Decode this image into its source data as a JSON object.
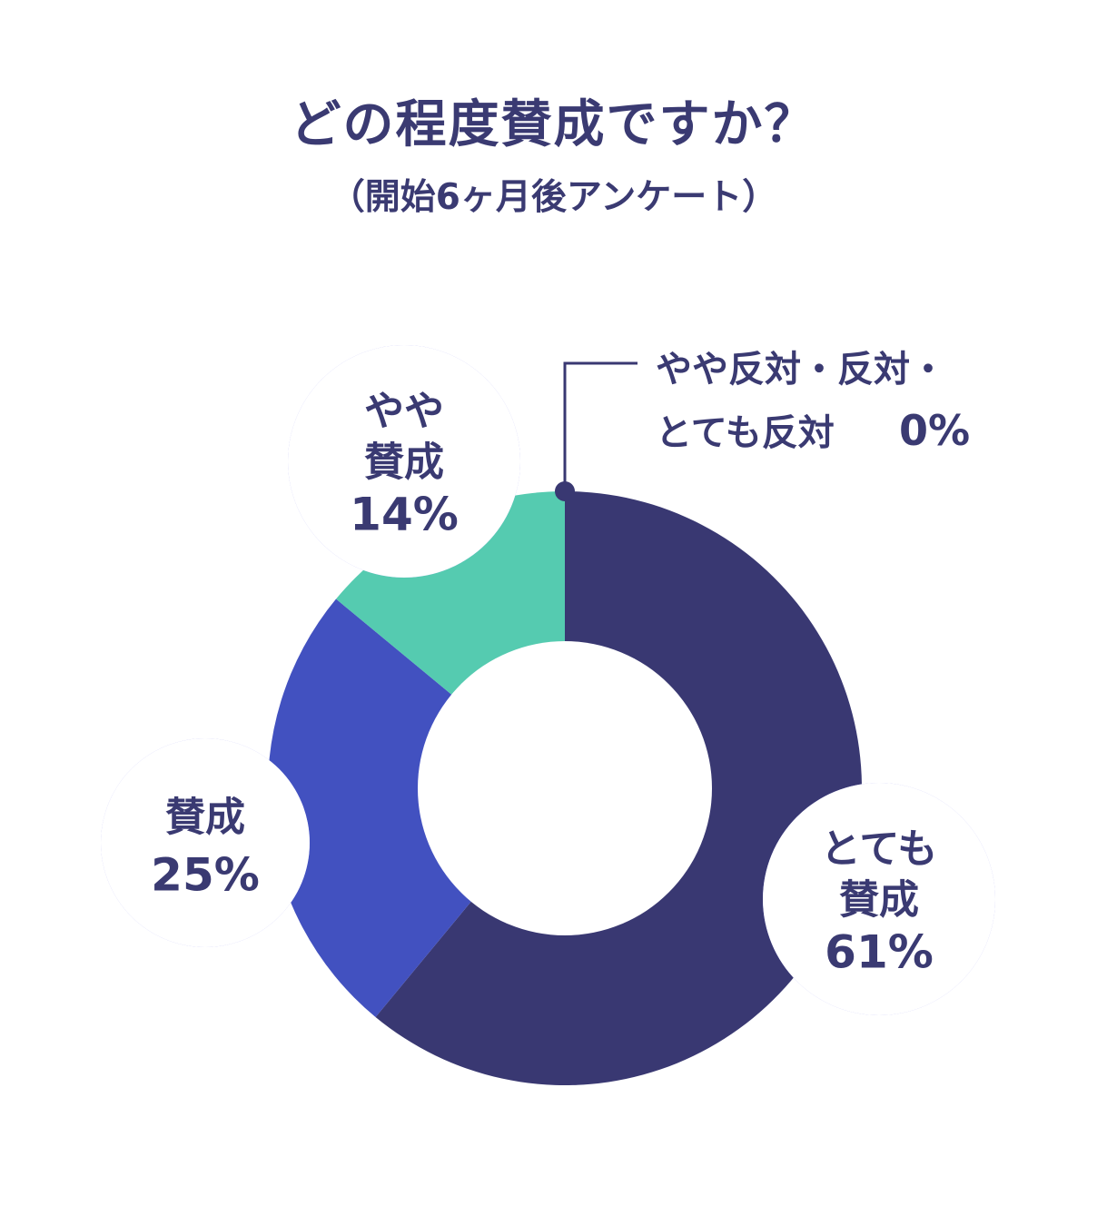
{
  "title": "どの程度賛成ですか？",
  "subtitle": "（開始6ヶ月後アンケート）",
  "chart_data": {
    "type": "pie",
    "donut": true,
    "slices": [
      {
        "label_lines": [
          "とても",
          "賛成"
        ],
        "value": 61,
        "value_text": "61%",
        "color": "#393872"
      },
      {
        "label_lines": [
          "賛成"
        ],
        "value": 25,
        "value_text": "25%",
        "color": "#4251c0"
      },
      {
        "label_lines": [
          "やや",
          "賛成"
        ],
        "value": 14,
        "value_text": "14%",
        "color": "#55cbb0"
      },
      {
        "label_lines": [
          "やや反対・反対・",
          "とても反対"
        ],
        "value": 0,
        "value_text": "0%",
        "color": "#393872"
      }
    ]
  }
}
